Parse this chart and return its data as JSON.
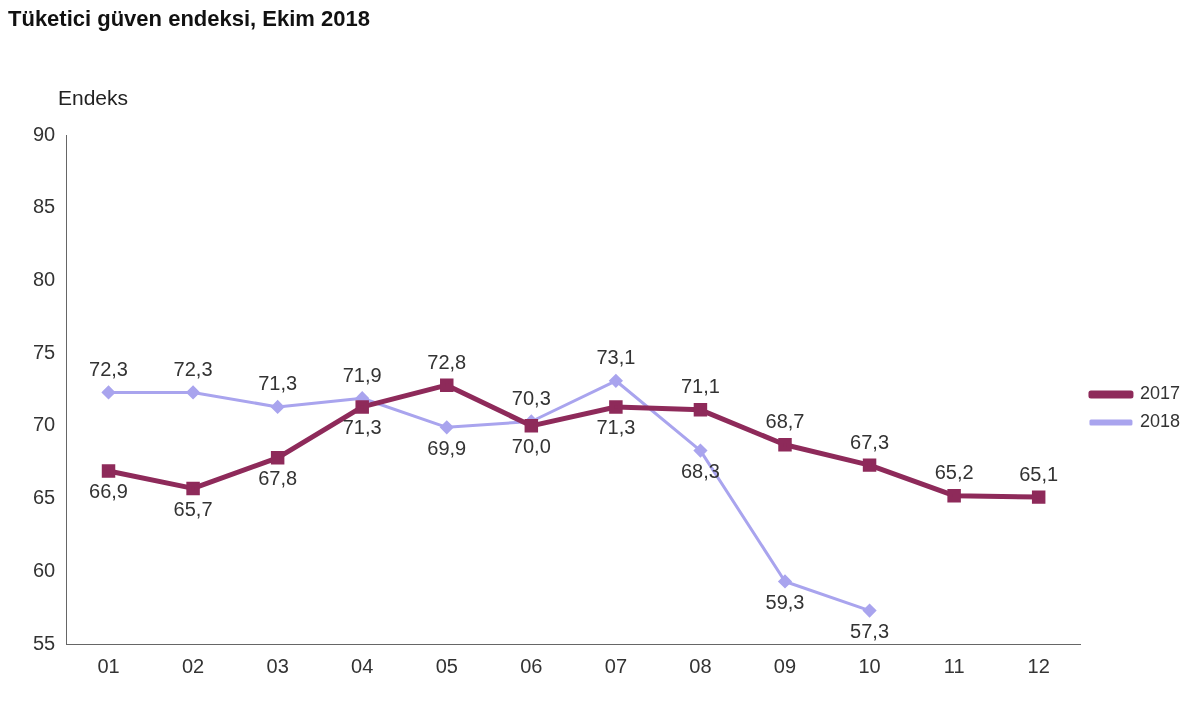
{
  "chart_data": {
    "type": "line",
    "title": "Tüketici güven endeksi, Ekim 2018",
    "ylabel": "Endeks",
    "categories": [
      "01",
      "02",
      "03",
      "04",
      "05",
      "06",
      "07",
      "08",
      "09",
      "10",
      "11",
      "12"
    ],
    "series": [
      {
        "name": "2017",
        "color": "#8e2a5a",
        "marker": "square",
        "values": [
          66.9,
          65.7,
          67.8,
          71.3,
          72.8,
          70.0,
          71.3,
          71.1,
          68.7,
          67.3,
          65.2,
          65.1
        ],
        "value_labels": [
          "66,9",
          "65,7",
          "67,8",
          "71,3",
          "72,8",
          "70,0",
          "71,3",
          "71,1",
          "68,7",
          "67,3",
          "65,2",
          "65,1"
        ]
      },
      {
        "name": "2018",
        "color": "#a9a4ee",
        "marker": "diamond",
        "values": [
          72.3,
          72.3,
          71.3,
          71.9,
          69.9,
          70.3,
          73.1,
          68.3,
          59.3,
          57.3,
          null,
          null
        ],
        "value_labels": [
          "72,3",
          "72,3",
          "71,3",
          "71,9",
          "69,9",
          "70,3",
          "73,1",
          "68,3",
          "59,3",
          "57,3",
          null,
          null
        ]
      }
    ],
    "ylim": [
      55,
      90
    ],
    "yticks": [
      55,
      60,
      65,
      70,
      75,
      80,
      85,
      90
    ],
    "grid": false,
    "legend": "right",
    "line_style": "solid"
  }
}
